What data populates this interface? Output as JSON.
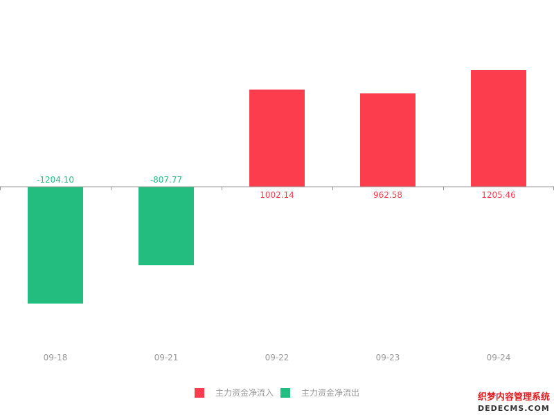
{
  "chart_data": {
    "type": "bar",
    "categories": [
      "09-18",
      "09-21",
      "09-22",
      "09-23",
      "09-24"
    ],
    "values": [
      -1204.1,
      -807.77,
      1002.14,
      962.58,
      1205.46
    ],
    "value_labels": [
      "-1204.10",
      "-807.77",
      "1002.14",
      "962.58",
      "1205.46"
    ],
    "ylim": [
      -1650,
      1650
    ],
    "legend": [
      {
        "label": "主力资金净流入",
        "color": "#fc3d4e"
      },
      {
        "label": "主力资金净流出",
        "color": "#22bd7f"
      }
    ],
    "legend_placement": "bottom-center",
    "grid": false
  },
  "colors": {
    "positive": "#fc3d4e",
    "negative": "#22bd7f",
    "axis": "#999999",
    "tick_text": "#999999"
  },
  "watermark": {
    "line1": "织梦内容管理系统",
    "line2": "DEDECMS.COM"
  }
}
